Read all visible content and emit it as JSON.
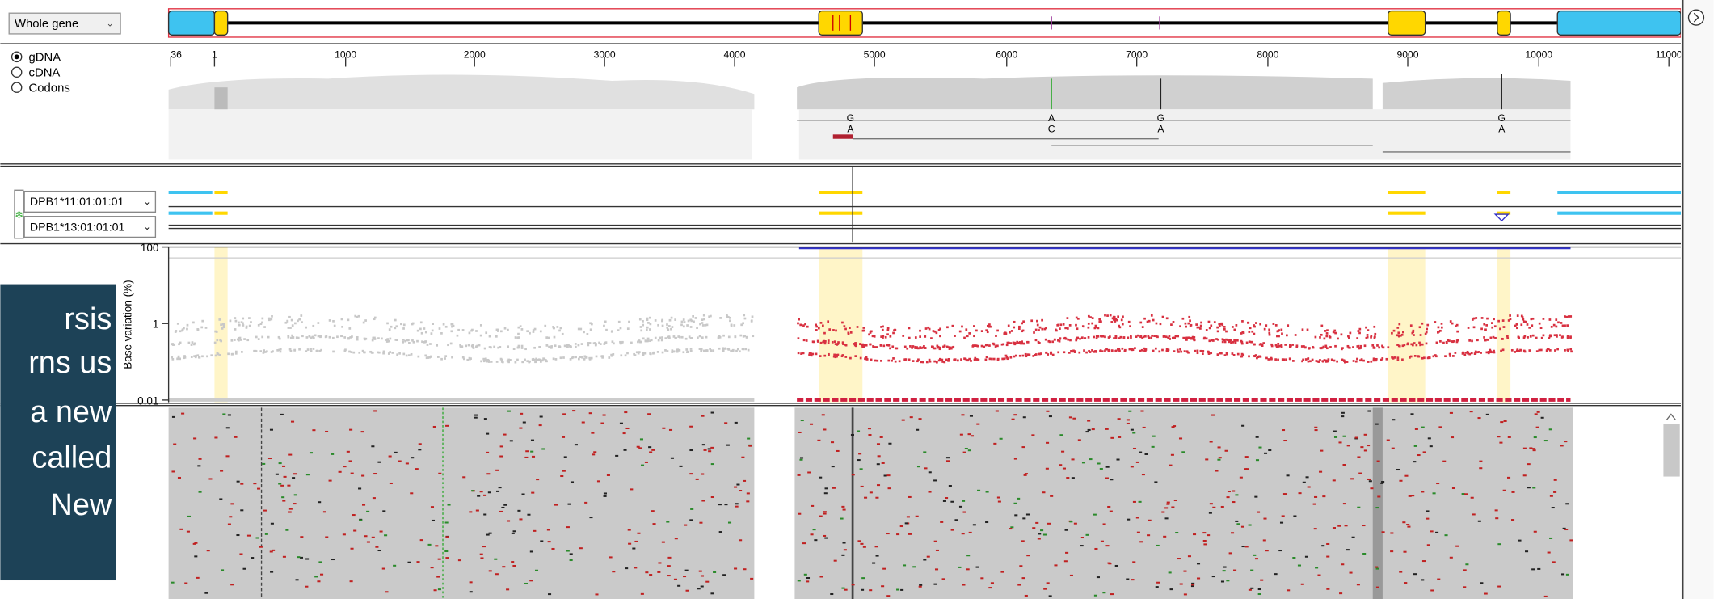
{
  "toolbar": {
    "view_select": "Whole gene",
    "modes": [
      "gDNA",
      "cDNA",
      "Codons"
    ]
  },
  "ruler": {
    "ticks": [
      "36",
      "1",
      "1000",
      "2000",
      "3000",
      "4000",
      "5000",
      "6000",
      "7000",
      "8000",
      "9000",
      "10000",
      "11000"
    ]
  },
  "variants": [
    {
      "ref": "G",
      "alt": "A"
    },
    {
      "ref": "A",
      "alt": "C"
    },
    {
      "ref": "G",
      "alt": "A"
    },
    {
      "ref": "G",
      "alt": "A"
    }
  ],
  "alleles": [
    "DPB1*11:01:01:01",
    "DPB1*13:01:01:01"
  ],
  "plot": {
    "y_label": "Base variation (%)",
    "y_ticks": [
      "100",
      "1",
      "0,01"
    ]
  },
  "overlay": {
    "lines": [
      "rsis",
      "rns us",
      "a new",
      "called",
      "New"
    ]
  }
}
